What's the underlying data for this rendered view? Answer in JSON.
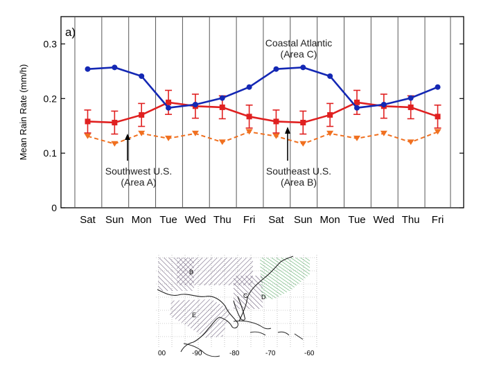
{
  "chart_data": {
    "type": "line",
    "panel_label": "a)",
    "ylabel": "Mean Rain Rate  (mm/h)",
    "xlabel": "",
    "ylim": [
      0,
      0.35
    ],
    "yticks": [
      0,
      0.1,
      0.2,
      0.3
    ],
    "ytick_labels": [
      "0",
      "0.1",
      "0.2",
      "0.3"
    ],
    "categories": [
      "Sat",
      "Sun",
      "Mon",
      "Tue",
      "Wed",
      "Thu",
      "Fri",
      "Sat",
      "Sun",
      "Mon",
      "Tue",
      "Wed",
      "Thu",
      "Fri"
    ],
    "grid": "vertical",
    "series": [
      {
        "name": "Coastal Atlantic (Area C)",
        "color": "#1428b4",
        "marker": "circle",
        "line": "solid",
        "values": [
          0.254,
          0.257,
          0.241,
          0.183,
          0.189,
          0.201,
          0.221,
          0.254,
          0.257,
          0.241,
          0.183,
          0.189,
          0.201,
          0.221
        ]
      },
      {
        "name": "Southeast U.S. (Area B)",
        "color": "#e02020",
        "marker": "square",
        "line": "solid",
        "values": [
          0.158,
          0.156,
          0.17,
          0.193,
          0.186,
          0.184,
          0.167,
          0.158,
          0.156,
          0.17,
          0.193,
          0.186,
          0.184,
          0.167
        ],
        "errors": [
          0.021,
          0.021,
          0.021,
          0.022,
          0.022,
          0.021,
          0.021,
          0.021,
          0.021,
          0.021,
          0.022,
          0.022,
          0.021,
          0.021
        ]
      },
      {
        "name": "Southwest U.S. (Area A)",
        "color": "#f07020",
        "marker": "triangle-down",
        "line": "dashed",
        "values": [
          0.131,
          0.117,
          0.136,
          0.127,
          0.136,
          0.12,
          0.139,
          0.131,
          0.117,
          0.136,
          0.127,
          0.136,
          0.12,
          0.139
        ]
      }
    ],
    "annotations": [
      {
        "line1": "Coastal Atlantic",
        "line2": "(Area C)"
      },
      {
        "line1": "Southwest U.S.",
        "line2": "(Area A)"
      },
      {
        "line1": "Southeast U.S.",
        "line2": "(Area B)"
      }
    ]
  },
  "map": {
    "region_labels": [
      "B",
      "C",
      "D",
      "E"
    ],
    "lon_labels": [
      "00",
      "-90",
      "-80",
      "-70",
      "-60"
    ],
    "colors": {
      "hatch": "#5a4a6a",
      "hatch_green": "#3a9a4a",
      "coast": "#222222",
      "grid": "#9a9a9a"
    }
  }
}
